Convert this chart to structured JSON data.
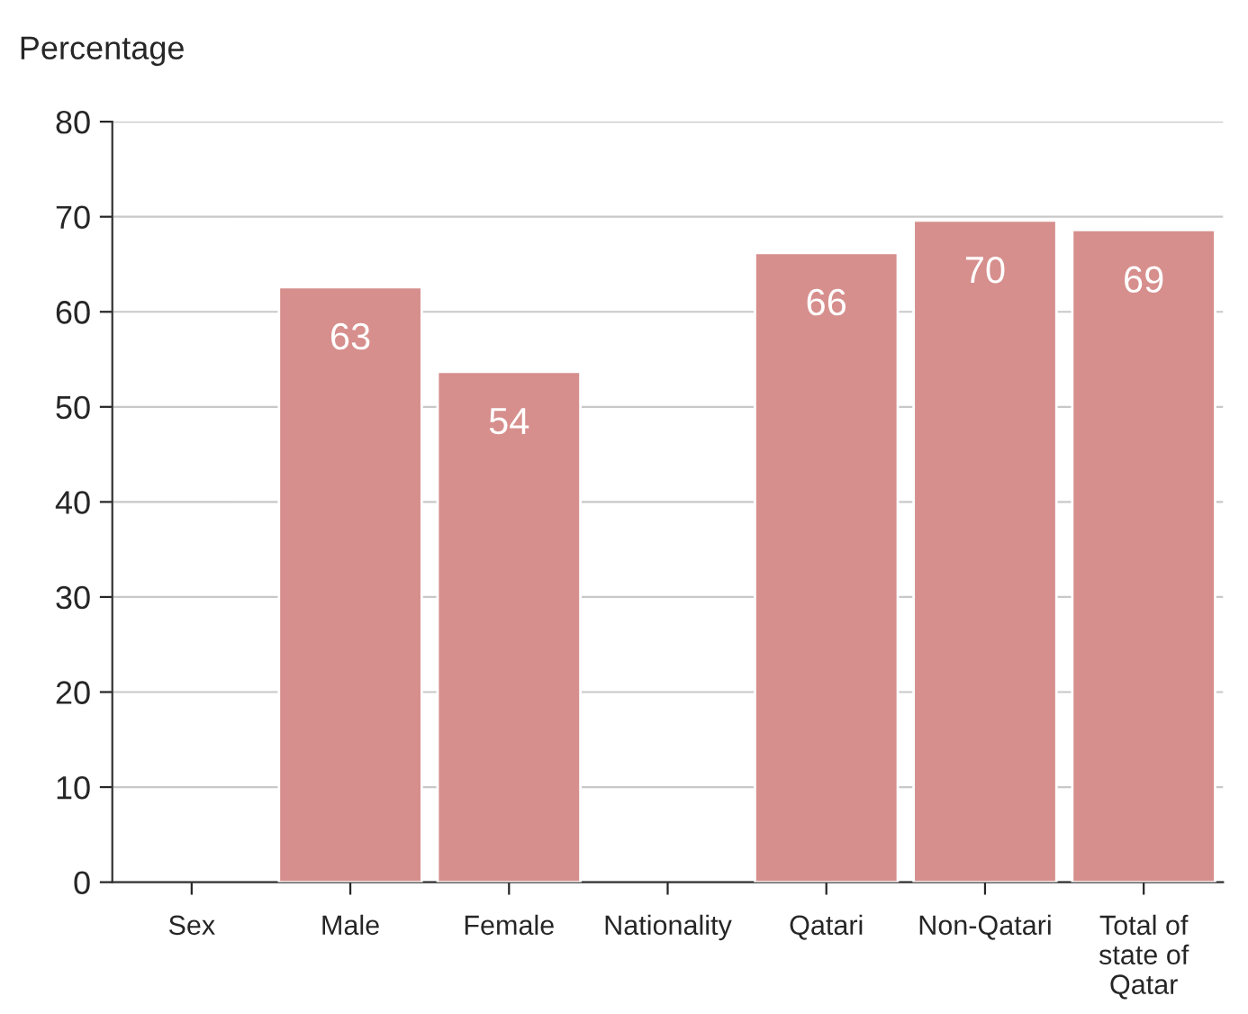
{
  "chart_data": {
    "type": "bar",
    "ylabel": "Percentage",
    "categories": [
      "Sex",
      "Male",
      "Female",
      "Nationality",
      "Qatari",
      "Non-Qatari",
      "Total of\nstate of\nQatar"
    ],
    "values": [
      null,
      62.6,
      53.7,
      null,
      66.2,
      69.6,
      68.6
    ],
    "value_labels": [
      null,
      "63",
      "54",
      null,
      "66",
      "70",
      "69"
    ],
    "color": "#d68f8d",
    "ylim": [
      0,
      80
    ],
    "yticks": [
      0,
      10,
      20,
      30,
      40,
      50,
      60,
      70,
      80
    ],
    "grid": "y"
  }
}
